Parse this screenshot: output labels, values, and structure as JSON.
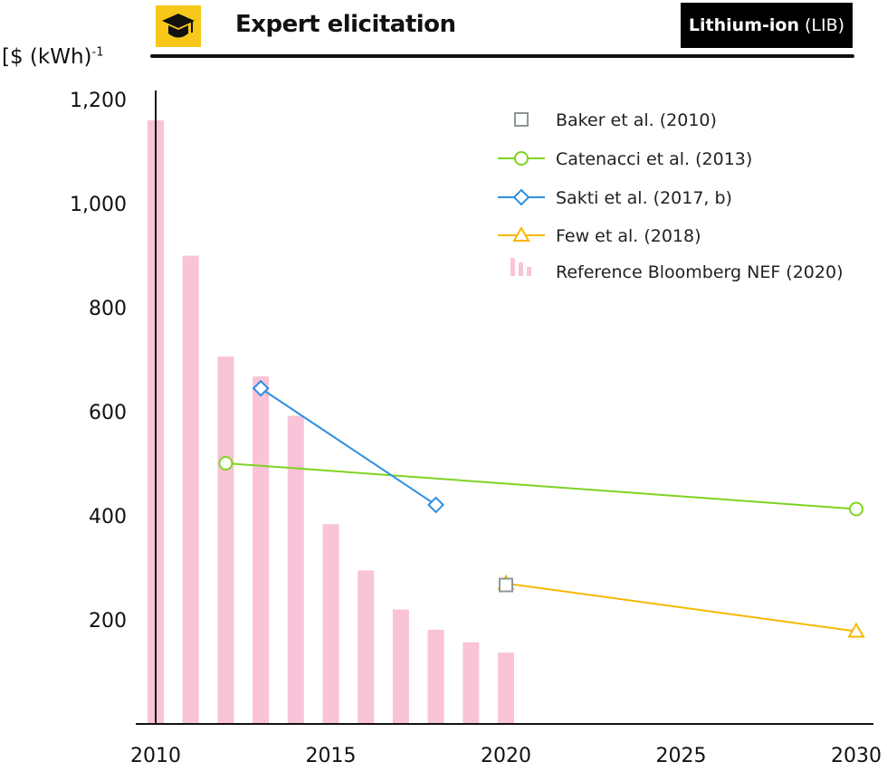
{
  "header": {
    "icon": "graduation-cap-icon",
    "title": "Expert elicitation",
    "badge_bold": "Lithium-ion",
    "badge_rest": " (LIB)"
  },
  "chart_data": {
    "type": "bar+line",
    "ylabel_main": "[$ (kWh)",
    "ylabel_sup": "-1",
    "xlim": [
      2010,
      2030
    ],
    "ylim": [
      0,
      1200
    ],
    "xticks": [
      "2010",
      "2015",
      "2020",
      "2025",
      "2030"
    ],
    "yticks": [
      "200",
      "400",
      "600",
      "800",
      "1,000",
      "1,200"
    ],
    "legend_position": "top-right",
    "bars": {
      "name": "Reference Bloomberg NEF (2020)",
      "color": "#f9c3d8",
      "x": [
        2010,
        2011,
        2012,
        2013,
        2014,
        2015,
        2016,
        2017,
        2018,
        2019,
        2020
      ],
      "values": [
        1160,
        900,
        706,
        668,
        592,
        384,
        295,
        220,
        181,
        157,
        137
      ]
    },
    "series": [
      {
        "name": "Baker et al. (2010)",
        "color": "#8c9696",
        "marker": "square",
        "line": false,
        "x": [
          2020
        ],
        "values": [
          267
        ]
      },
      {
        "name": "Catenacci et al. (2013)",
        "color": "#7ed321",
        "marker": "circle",
        "line": true,
        "x": [
          2012,
          2030
        ],
        "values": [
          501,
          413
        ]
      },
      {
        "name": "Sakti et al. (2017, b)",
        "color": "#2f8fe0",
        "marker": "diamond",
        "line": true,
        "x": [
          2013,
          2018
        ],
        "values": [
          645,
          421
        ]
      },
      {
        "name": "Few et al. (2018)",
        "color": "#f5b800",
        "marker": "triangle",
        "line": true,
        "x": [
          2020,
          2030
        ],
        "values": [
          270,
          178
        ]
      }
    ]
  }
}
